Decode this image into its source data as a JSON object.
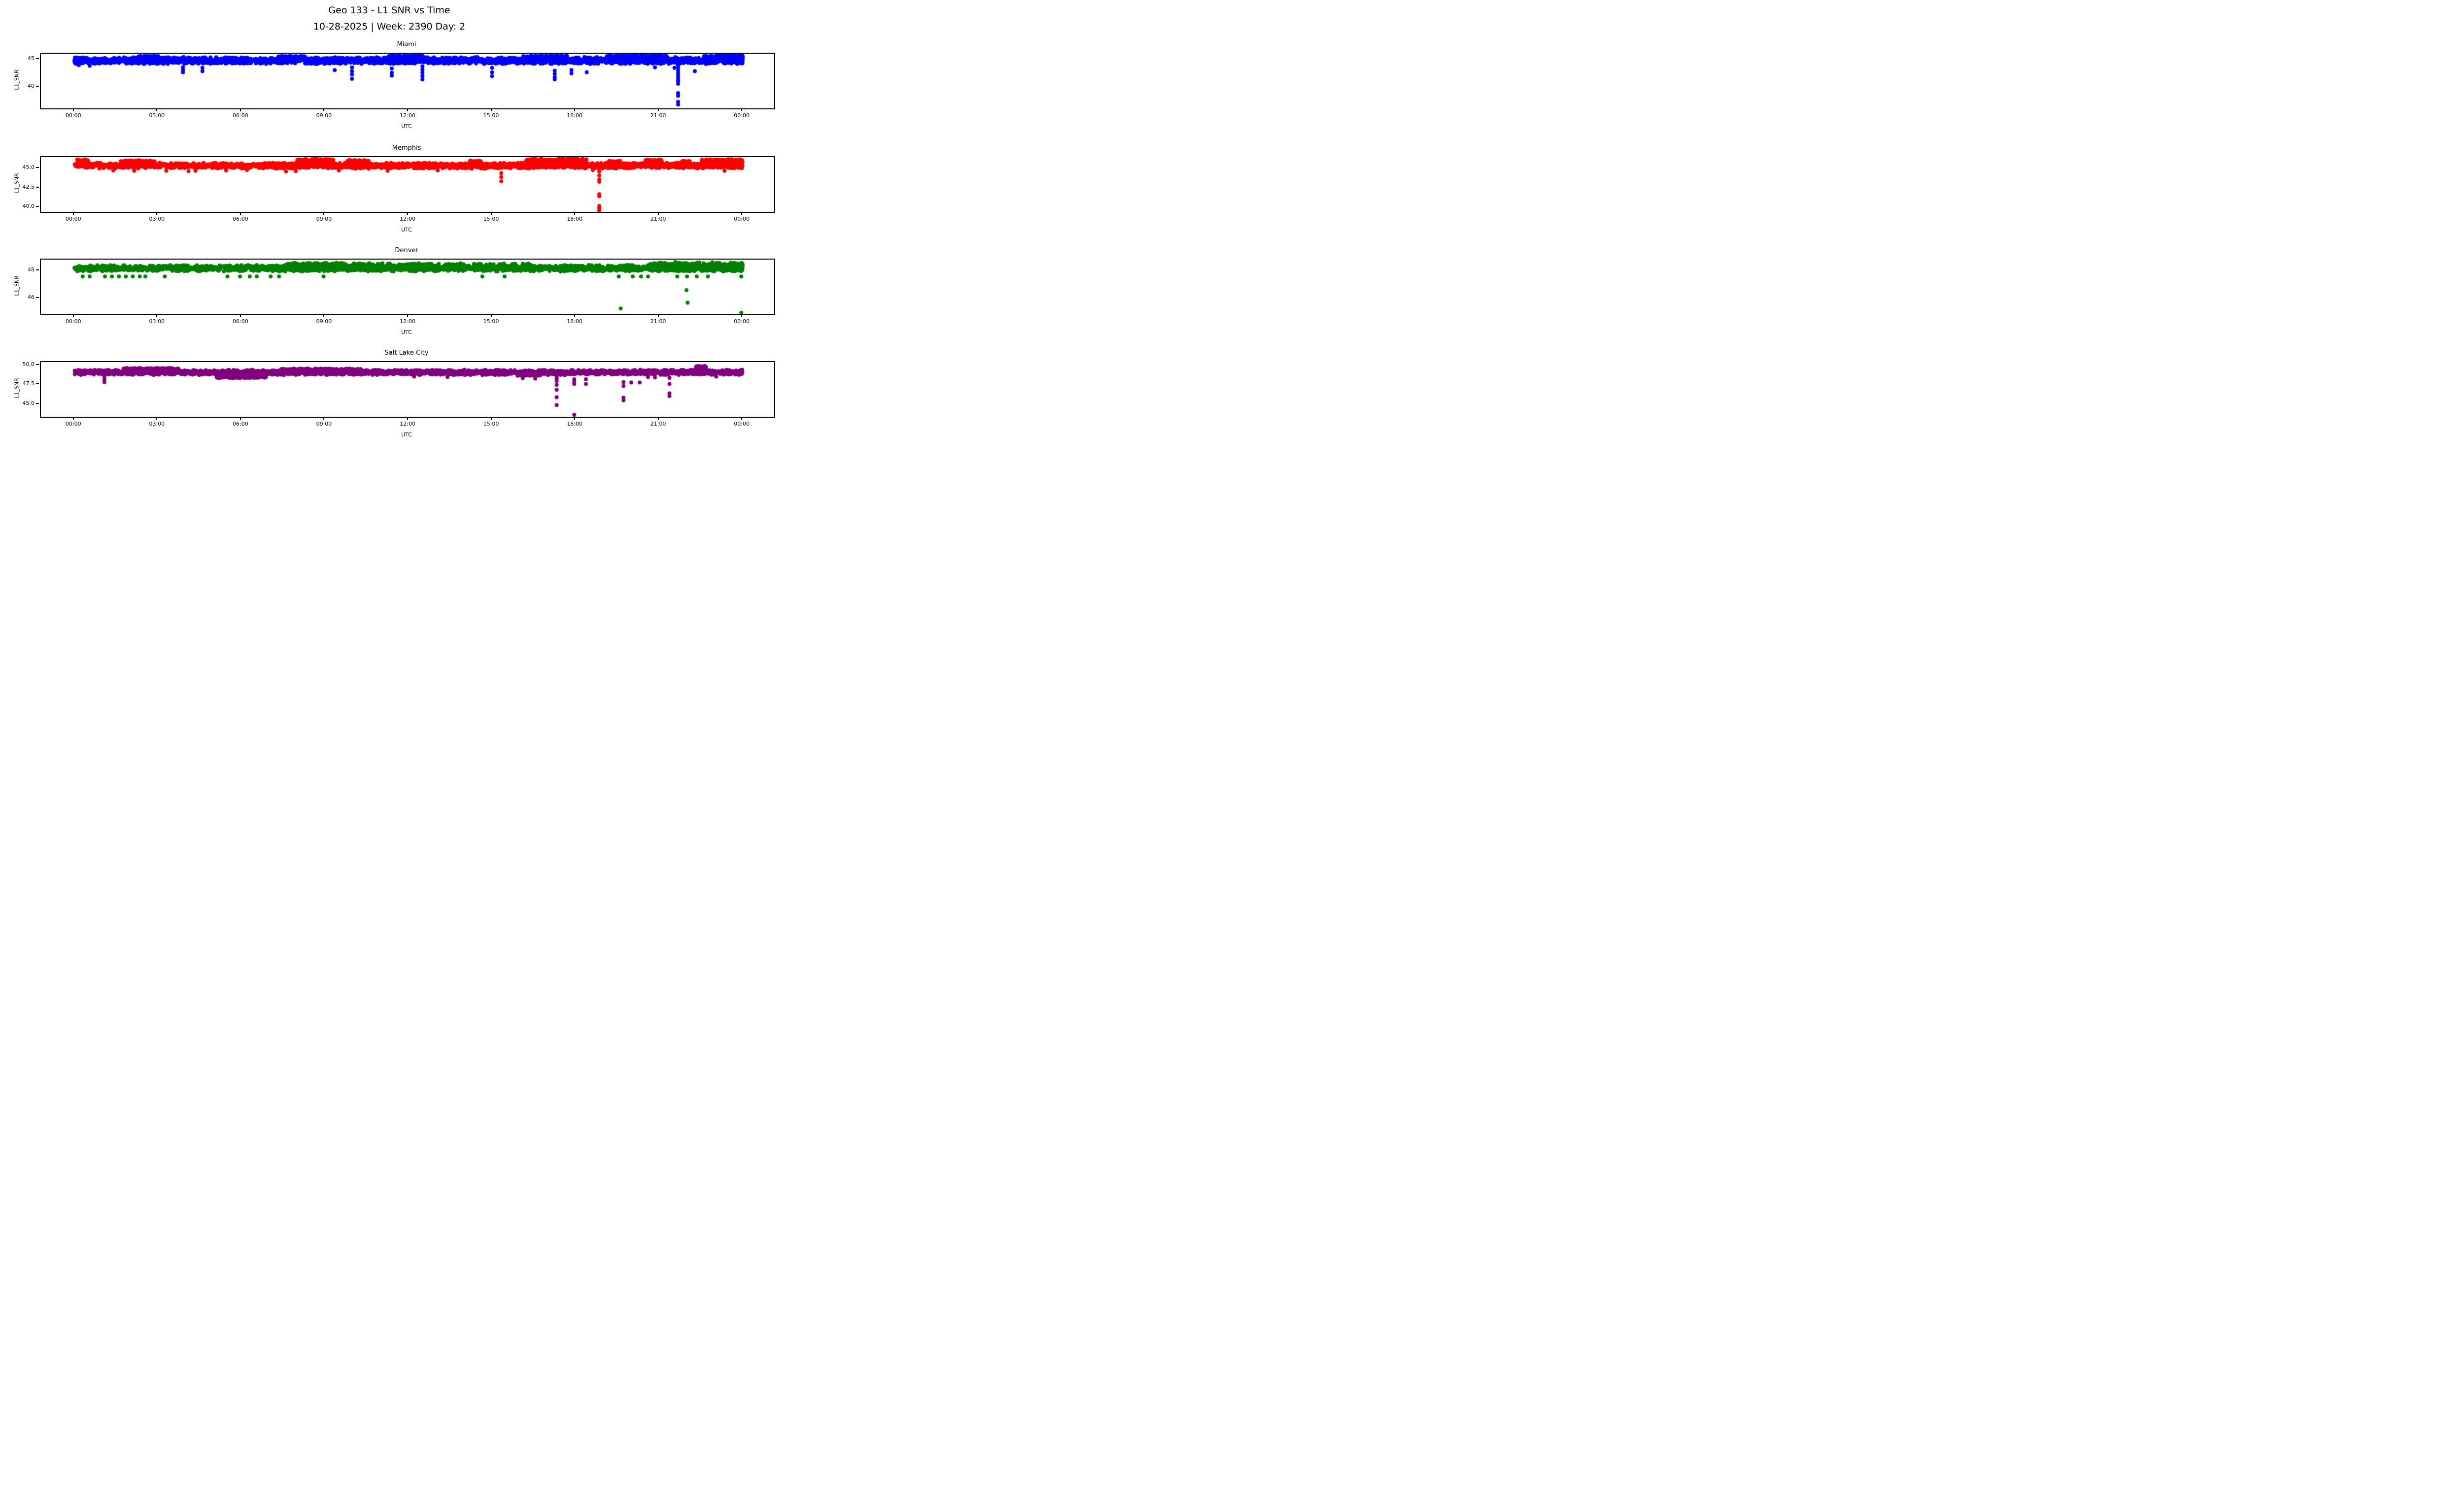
{
  "figure": {
    "suptitle_line1": "Geo 133 - L1 SNR vs Time",
    "suptitle_line2": "10-28-2025 | Week: 2390 Day: 2",
    "background_color": "#ffffff",
    "axes_color": "#000000"
  },
  "chart_data": [
    {
      "type": "scatter",
      "title": "Miami",
      "series_color": "#0000ff",
      "xlabel": "UTC",
      "ylabel": "L1_SNR",
      "x_tick_hours": [
        0,
        3,
        6,
        9,
        12,
        15,
        18,
        21,
        24
      ],
      "x_tick_labels": [
        "00:00",
        "03:00",
        "06:00",
        "09:00",
        "12:00",
        "15:00",
        "18:00",
        "21:00",
        "00:00"
      ],
      "xlim_hours": [
        -1.2,
        25.13
      ],
      "ylim": [
        36.1,
        46.1
      ],
      "yticks": [
        {
          "value": 40,
          "label": "40"
        },
        {
          "value": 45,
          "label": "45"
        }
      ],
      "marker_px": 4,
      "band_segments": [
        [
          0,
          24,
          44.3,
          45.5,
          2600
        ],
        [
          0,
          24,
          44.2,
          44.55,
          300
        ],
        [
          0,
          0.4,
          44.7,
          45.45,
          80
        ],
        [
          2.3,
          3.1,
          45.45,
          45.72,
          40
        ],
        [
          7.3,
          8.3,
          45.45,
          45.7,
          40
        ],
        [
          11.2,
          12.5,
          45.45,
          45.8,
          60
        ],
        [
          16.1,
          17.7,
          45.45,
          45.8,
          60
        ],
        [
          19.1,
          21.3,
          45.45,
          45.85,
          90
        ],
        [
          22.6,
          24,
          44.65,
          45.75,
          500
        ],
        [
          23.05,
          24,
          45.5,
          45.85,
          80
        ]
      ],
      "dips": [
        {
          "x": 0.16,
          "ys": [
            44.0
          ]
        },
        {
          "x": 0.55,
          "ys": [
            43.9
          ]
        },
        {
          "x": 3.9,
          "ys": [
            43.6,
            43.1,
            42.7
          ]
        },
        {
          "x": 4.6,
          "ys": [
            43.5,
            42.9
          ]
        },
        {
          "x": 9.35,
          "ys": [
            43.1
          ]
        },
        {
          "x": 9.97,
          "ys": [
            43.6,
            42.9,
            42.3,
            41.5
          ]
        },
        {
          "x": 11.4,
          "ys": [
            43.4,
            42.6,
            42.1
          ]
        },
        {
          "x": 12.5,
          "ys": [
            43.8,
            43.2,
            42.6,
            42.0,
            41.4
          ]
        },
        {
          "x": 15.0,
          "ys": [
            43.5,
            42.7,
            42.0
          ]
        },
        {
          "x": 17.25,
          "ys": [
            43.0,
            42.4,
            41.8,
            41.4
          ]
        },
        {
          "x": 17.85,
          "ys": [
            43.1,
            42.5
          ]
        },
        {
          "x": 18.4,
          "ys": [
            42.7
          ]
        },
        {
          "x": 20.85,
          "ys": [
            43.6
          ]
        },
        {
          "x": 21.55,
          "ys": [
            43.5
          ]
        },
        {
          "x": 21.68,
          "ys": [
            44.0,
            43.5,
            43.0,
            42.5,
            42.0,
            41.55,
            41.1,
            40.6,
            38.9,
            38.4,
            37.3,
            36.8
          ]
        },
        {
          "x": 22.28,
          "ys": [
            42.9
          ]
        }
      ],
      "outliers": []
    },
    {
      "type": "scatter",
      "title": "Memphis",
      "series_color": "#ff0000",
      "xlabel": "UTC",
      "ylabel": "L1_SNR",
      "x_tick_hours": [
        0,
        3,
        6,
        9,
        12,
        15,
        18,
        21,
        24
      ],
      "x_tick_labels": [
        "00:00",
        "03:00",
        "06:00",
        "09:00",
        "12:00",
        "15:00",
        "18:00",
        "21:00",
        "00:00"
      ],
      "xlim_hours": [
        -1.2,
        25.13
      ],
      "ylim": [
        39.44,
        46.45
      ],
      "yticks": [
        {
          "value": 40.0,
          "label": "40.0"
        },
        {
          "value": 42.5,
          "label": "42.5"
        },
        {
          "value": 45.0,
          "label": "45.0"
        }
      ],
      "marker_px": 4,
      "band_segments": [
        [
          0,
          24,
          45.05,
          45.75,
          2600
        ],
        [
          0,
          24,
          44.95,
          45.25,
          250
        ],
        [
          0.1,
          0.5,
          45.7,
          46.2,
          50
        ],
        [
          1.6,
          2.9,
          45.7,
          46.1,
          60
        ],
        [
          8.0,
          9.3,
          45.7,
          46.25,
          200
        ],
        [
          9.8,
          10.6,
          45.7,
          46.1,
          70
        ],
        [
          14.2,
          14.6,
          45.7,
          46.0,
          30
        ],
        [
          16.2,
          18.4,
          45.7,
          46.3,
          280
        ],
        [
          19.2,
          19.6,
          45.7,
          46.0,
          30
        ],
        [
          20.5,
          21.1,
          45.7,
          46.15,
          80
        ],
        [
          21.8,
          22.1,
          45.7,
          46.0,
          30
        ],
        [
          22.5,
          24,
          45.7,
          46.2,
          200
        ]
      ],
      "dips": [
        {
          "x": 1.4,
          "ys": [
            44.75
          ]
        },
        {
          "x": 2.15,
          "ys": [
            44.7
          ]
        },
        {
          "x": 3.3,
          "ys": [
            44.7
          ]
        },
        {
          "x": 4.1,
          "ys": [
            44.65
          ]
        },
        {
          "x": 4.35,
          "ys": [
            44.7
          ]
        },
        {
          "x": 5.45,
          "ys": [
            44.75
          ]
        },
        {
          "x": 6.2,
          "ys": [
            44.8
          ]
        },
        {
          "x": 7.6,
          "ys": [
            44.6
          ]
        },
        {
          "x": 7.95,
          "ys": [
            44.65
          ]
        },
        {
          "x": 9.5,
          "ys": [
            44.75
          ]
        },
        {
          "x": 11.25,
          "ys": [
            44.7
          ]
        },
        {
          "x": 13.05,
          "ys": [
            44.75
          ]
        },
        {
          "x": 15.33,
          "ys": [
            44.4,
            43.9,
            43.35
          ]
        },
        {
          "x": 18.62,
          "ys": [
            44.8
          ]
        },
        {
          "x": 18.85,
          "ys": [
            44.6,
            44.1,
            43.6,
            43.3,
            41.7,
            41.45,
            40.2,
            39.95,
            39.7,
            39.6
          ]
        },
        {
          "x": 23.35,
          "ys": [
            44.7
          ]
        }
      ],
      "outliers": [
        [
          17.87,
          46.5
        ],
        [
          17.92,
          46.4
        ]
      ]
    },
    {
      "type": "scatter",
      "title": "Denver",
      "series_color": "#008000",
      "xlabel": "UTC",
      "ylabel": "L1_SNR",
      "x_tick_hours": [
        0,
        3,
        6,
        9,
        12,
        15,
        18,
        21,
        24
      ],
      "x_tick_labels": [
        "00:00",
        "03:00",
        "06:00",
        "09:00",
        "12:00",
        "15:00",
        "18:00",
        "21:00",
        "00:00"
      ],
      "xlim_hours": [
        -1.2,
        25.13
      ],
      "ylim": [
        44.83,
        48.83
      ],
      "yticks": [
        {
          "value": 46,
          "label": "46"
        },
        {
          "value": 48,
          "label": "48"
        }
      ],
      "marker_px": 4,
      "band_segments": [
        [
          0,
          24,
          47.95,
          48.45,
          2400
        ],
        [
          7.6,
          9.85,
          48.05,
          48.62,
          400
        ],
        [
          9.85,
          16.4,
          48.4,
          48.58,
          80
        ],
        [
          20.6,
          24,
          47.95,
          48.65,
          600
        ]
      ],
      "dips": [
        {
          "x": 0.3,
          "ys": [
            47.6
          ]
        },
        {
          "x": 0.55,
          "ys": [
            47.6
          ]
        },
        {
          "x": 1.1,
          "ys": [
            47.6
          ]
        },
        {
          "x": 1.35,
          "ys": [
            47.6
          ]
        },
        {
          "x": 1.6,
          "ys": [
            47.6
          ]
        },
        {
          "x": 1.85,
          "ys": [
            47.6
          ]
        },
        {
          "x": 2.1,
          "ys": [
            47.6
          ]
        },
        {
          "x": 2.35,
          "ys": [
            47.6
          ]
        },
        {
          "x": 2.55,
          "ys": [
            47.6
          ]
        },
        {
          "x": 3.25,
          "ys": [
            47.6
          ]
        },
        {
          "x": 5.5,
          "ys": [
            47.6
          ]
        },
        {
          "x": 5.95,
          "ys": [
            47.6
          ]
        },
        {
          "x": 6.3,
          "ys": [
            47.6
          ]
        },
        {
          "x": 6.55,
          "ys": [
            47.6
          ]
        },
        {
          "x": 7.05,
          "ys": [
            47.6
          ]
        },
        {
          "x": 7.35,
          "ys": [
            47.6
          ]
        },
        {
          "x": 8.95,
          "ys": [
            47.6
          ]
        },
        {
          "x": 14.65,
          "ys": [
            47.6
          ]
        },
        {
          "x": 15.45,
          "ys": [
            47.6
          ]
        },
        {
          "x": 19.55,
          "ys": [
            47.6
          ]
        },
        {
          "x": 20.05,
          "ys": [
            47.6
          ]
        },
        {
          "x": 20.35,
          "ys": [
            47.6
          ]
        },
        {
          "x": 20.6,
          "ys": [
            47.6
          ]
        },
        {
          "x": 21.65,
          "ys": [
            47.6
          ]
        },
        {
          "x": 22.0,
          "ys": [
            47.6
          ]
        },
        {
          "x": 22.35,
          "ys": [
            47.6
          ]
        },
        {
          "x": 22.75,
          "ys": [
            47.6
          ]
        },
        {
          "x": 23.95,
          "ys": [
            47.6
          ]
        }
      ],
      "outliers": [
        [
          19.62,
          45.25
        ],
        [
          21.98,
          46.6
        ],
        [
          22.02,
          45.68
        ],
        [
          23.95,
          44.95
        ]
      ]
    },
    {
      "type": "scatter",
      "title": "Salt Lake City",
      "series_color": "#800080",
      "xlabel": "UTC",
      "ylabel": "L1_SNR",
      "x_tick_hours": [
        0,
        3,
        6,
        9,
        12,
        15,
        18,
        21,
        24
      ],
      "x_tick_labels": [
        "00:00",
        "03:00",
        "06:00",
        "09:00",
        "12:00",
        "15:00",
        "18:00",
        "21:00",
        "00:00"
      ],
      "xlim_hours": [
        -1.2,
        25.13
      ],
      "ylim": [
        43.4,
        50.42
      ],
      "yticks": [
        {
          "value": 45.0,
          "label": "45.0"
        },
        {
          "value": 47.5,
          "label": "47.5"
        },
        {
          "value": 50.0,
          "label": "50.0"
        }
      ],
      "marker_px": 4,
      "band_segments": [
        [
          0,
          24,
          48.8,
          49.45,
          2600
        ],
        [
          0,
          24,
          48.72,
          49.0,
          250
        ],
        [
          1.75,
          3.75,
          49.4,
          49.68,
          130
        ],
        [
          5.1,
          6.9,
          48.35,
          48.75,
          220
        ],
        [
          7.4,
          10.3,
          49.35,
          49.6,
          130
        ],
        [
          15.9,
          16.8,
          48.6,
          48.9,
          50
        ],
        [
          22.3,
          22.68,
          49.5,
          49.95,
          70
        ]
      ],
      "dips": [
        {
          "x": 1.08,
          "ys": [
            48.5,
            48.15,
            47.85
          ]
        },
        {
          "x": 12.2,
          "ys": [
            48.55
          ]
        },
        {
          "x": 13.4,
          "ys": [
            48.5
          ]
        },
        {
          "x": 16.1,
          "ys": [
            48.35
          ]
        },
        {
          "x": 16.55,
          "ys": [
            48.3
          ]
        },
        {
          "x": 17.32,
          "ys": [
            48.55,
            48.3,
            48.0,
            47.5,
            46.85,
            45.9,
            44.9
          ]
        },
        {
          "x": 17.95,
          "ys": [
            48.2,
            47.9,
            47.6,
            43.65
          ]
        },
        {
          "x": 18.37,
          "ys": [
            48.2,
            47.6
          ]
        },
        {
          "x": 19.72,
          "ys": [
            47.85,
            47.35,
            45.85,
            45.5
          ]
        },
        {
          "x": 20.0,
          "ys": [
            47.8
          ]
        },
        {
          "x": 20.3,
          "ys": [
            47.8
          ]
        },
        {
          "x": 20.6,
          "ys": [
            48.5
          ]
        },
        {
          "x": 20.85,
          "ys": [
            48.45
          ]
        },
        {
          "x": 21.37,
          "ys": [
            48.4,
            47.6,
            46.4,
            46.05
          ]
        },
        {
          "x": 23.05,
          "ys": [
            48.55
          ]
        }
      ],
      "outliers": []
    }
  ]
}
